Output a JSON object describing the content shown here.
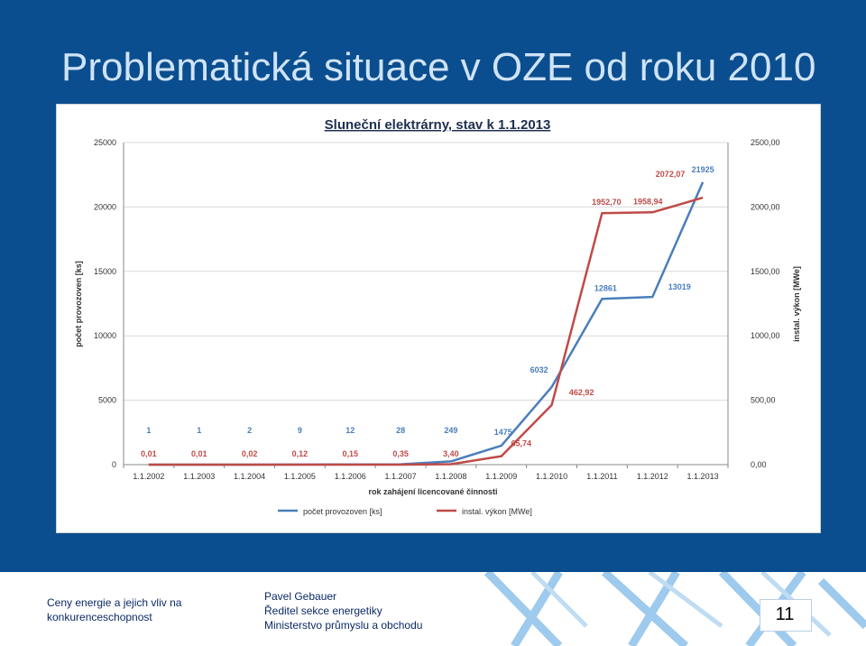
{
  "slide": {
    "title": "Problematická situace  v OZE od roku 2010",
    "page_number": "11",
    "colors": {
      "background": "#0b4e8f",
      "title": "#cfe3f7",
      "footer_text": "#0b2a66"
    }
  },
  "footer": {
    "left_line1": "Ceny energie a jejich vliv na",
    "left_line2": "konkurenceschopnost",
    "author": "Pavel Gebauer",
    "role": "Ředitel sekce energetiky",
    "ministry": "Ministerstvo průmyslu a obchodu"
  },
  "chart_data": {
    "type": "line",
    "title": "Sluneční elektrárny, stav k 1.1.2013",
    "xlabel": "rok zahájení licencované činnosti",
    "ylabel": "počet provozoven [ks]",
    "y2label": "instal. výkon [MWe]",
    "categories": [
      "1.1.2002",
      "1.1.2003",
      "1.1.2004",
      "1.1.2005",
      "1.1.2006",
      "1.1.2007",
      "1.1.2008",
      "1.1.2009",
      "1.1.2010",
      "1.1.2011",
      "1.1.2012",
      "1.1.2013"
    ],
    "ylim": [
      0,
      25000
    ],
    "yticks": [
      "0",
      "5000",
      "10000",
      "15000",
      "20000",
      "25000"
    ],
    "y2lim": [
      0,
      2500
    ],
    "y2ticks": [
      "0,00",
      "500,00",
      "1000,00",
      "1500,00",
      "2000,00",
      "2500,00"
    ],
    "grid": true,
    "legend_position": "bottom",
    "series": [
      {
        "name": "počet provozoven [ks]",
        "axis": "left",
        "color": "#4a7ebb",
        "values": [
          1,
          1,
          2,
          9,
          12,
          28,
          249,
          1475,
          6032,
          12861,
          13019,
          21925
        ],
        "labels": [
          "1",
          "1",
          "2",
          "9",
          "12",
          "28",
          "249",
          "1475",
          "6032",
          "12861",
          "13019",
          "21925"
        ]
      },
      {
        "name": "instal. výkon [MWe]",
        "axis": "right",
        "color": "#be4b48",
        "values": [
          0.01,
          0.01,
          0.02,
          0.12,
          0.15,
          0.35,
          3.4,
          65.74,
          462.92,
          1952.7,
          1958.94,
          2072.07
        ],
        "labels": [
          "0,01",
          "0,01",
          "0,02",
          "0,12",
          "0,15",
          "0,35",
          "3,40",
          "65,74",
          "462,92",
          "1952,70",
          "1958,94",
          "2072,07"
        ]
      }
    ]
  }
}
